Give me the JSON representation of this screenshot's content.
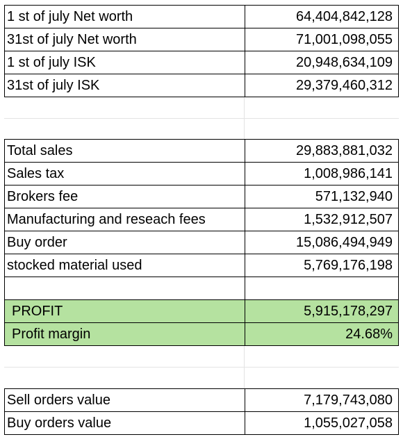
{
  "table": {
    "groups": [
      {
        "rows": [
          [
            "1 st of july Net worth",
            "64,404,842,128"
          ],
          [
            "31st of july Net worth",
            "71,001,098,055"
          ],
          [
            "1 st of july ISK",
            "20,948,634,109"
          ],
          [
            "31st of july ISK",
            "29,379,460,312"
          ]
        ]
      },
      {
        "rows": [
          [
            "Total sales",
            "29,883,881,032"
          ],
          [
            "Sales tax",
            "1,008,986,141"
          ],
          [
            "Brokers fee",
            "571,132,940"
          ],
          [
            "Manufacturing and reseach fees",
            "1,532,912,507"
          ],
          [
            "Buy order",
            "15,086,494,949"
          ],
          [
            "stocked material used",
            "5,769,176,198"
          ]
        ]
      },
      {
        "highlight": true,
        "rows": [
          [
            "PROFIT",
            "5,915,178,297"
          ],
          [
            "Profit margin",
            "24.68%"
          ]
        ]
      },
      {
        "rows": [
          [
            "Sell orders value",
            "7,179,743,080"
          ],
          [
            "Buy orders value",
            "1,055,027,058"
          ]
        ]
      }
    ]
  }
}
